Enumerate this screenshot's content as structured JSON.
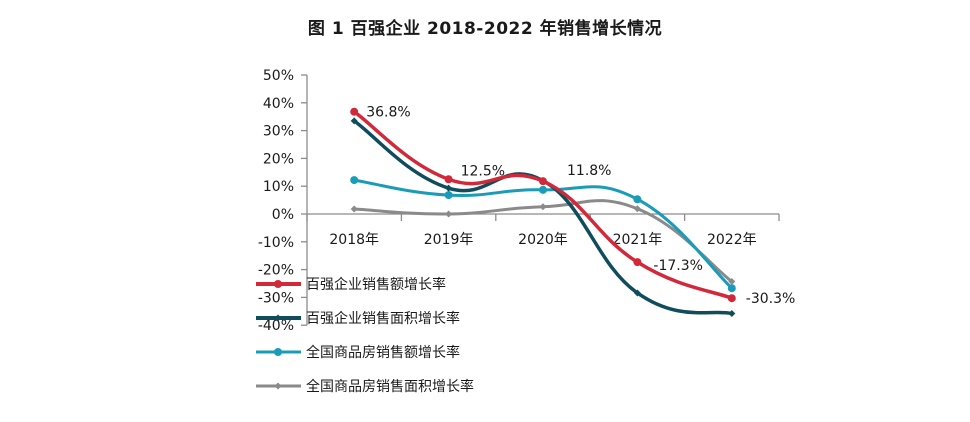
{
  "chart_data": {
    "type": "line",
    "title": "图 1  百强企业 2018-2022 年销售增长情况",
    "xlabel": "",
    "ylabel": "",
    "categories": [
      "2018年",
      "2019年",
      "2020年",
      "2021年",
      "2022年"
    ],
    "y_ticks": [
      "50%",
      "40%",
      "30%",
      "20%",
      "10%",
      "0%",
      "-10%",
      "-20%",
      "-30%",
      "-40%"
    ],
    "y_tick_values": [
      50,
      40,
      30,
      20,
      10,
      0,
      -10,
      -20,
      -30,
      -40
    ],
    "ylim": [
      -40,
      50
    ],
    "grid": false,
    "smooth": true,
    "legend_position": "bottom-left",
    "series": [
      {
        "name": "百强企业销售额增长率",
        "color": "#d1293a",
        "marker": "circle",
        "values": [
          36.8,
          12.5,
          11.8,
          -17.3,
          -30.3
        ],
        "labels": [
          "36.8%",
          "12.5%",
          "11.8%",
          "-17.3%",
          "-30.3%"
        ]
      },
      {
        "name": "百强企业销售面积增长率",
        "color": "#0f4c5c",
        "marker": "diamond",
        "values": [
          33.5,
          9.3,
          12.0,
          -28.4,
          -35.8
        ],
        "labels": []
      },
      {
        "name": "全国商品房销售额增长率",
        "color": "#1a9bb8",
        "marker": "circle",
        "values": [
          12.2,
          6.8,
          8.7,
          5.3,
          -26.7
        ],
        "labels": []
      },
      {
        "name": "全国商品房销售面积增长率",
        "color": "#8a8a8a",
        "marker": "diamond",
        "values": [
          1.8,
          0.0,
          2.6,
          1.9,
          -24.3
        ],
        "labels": []
      }
    ]
  }
}
